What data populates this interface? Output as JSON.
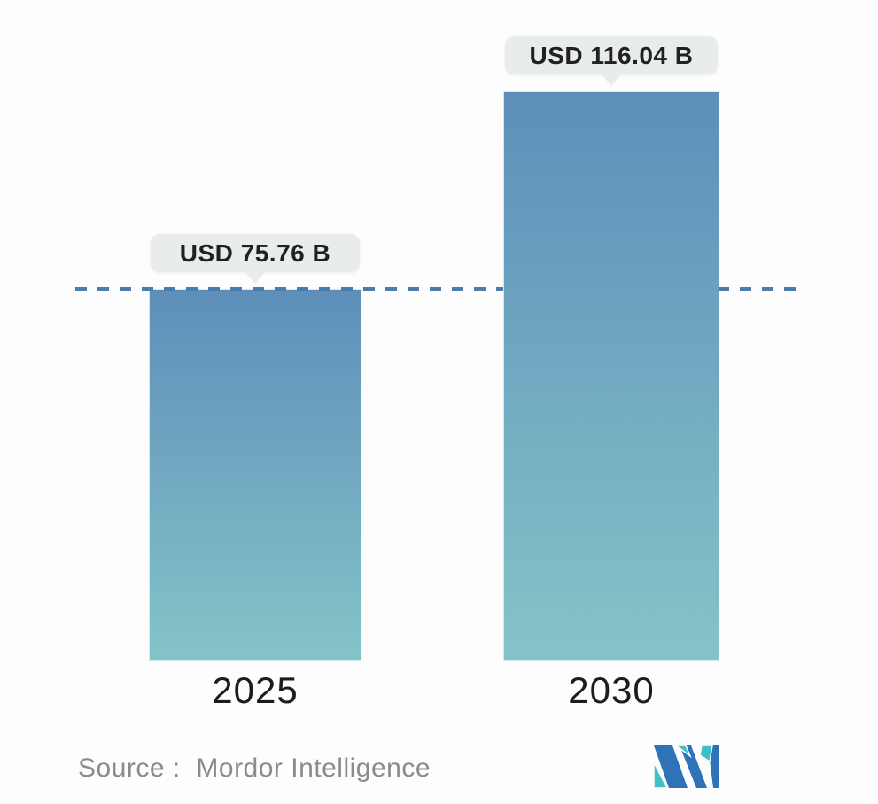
{
  "chart_data": {
    "type": "bar",
    "title": "",
    "categories": [
      "2025",
      "2030"
    ],
    "values": [
      75.76,
      116.04
    ],
    "value_labels": [
      "USD 75.76 B",
      "USD 116.04 B"
    ],
    "unit": "USD billions",
    "ylim": [
      0,
      116.04
    ],
    "grid": "off",
    "legend": "none",
    "reference_line": {
      "y": 75.76,
      "style": "dashed",
      "color": "#4a7da9"
    },
    "bar_gradient": {
      "top": "#5d8fba",
      "bottom": "#84c4c8"
    }
  },
  "source": {
    "label": "Source :  Mordor Intelligence"
  },
  "logo": {
    "name": "mordor-intelligence-logo",
    "blue": "#2e73b8",
    "teal": "#3fc0c6"
  }
}
